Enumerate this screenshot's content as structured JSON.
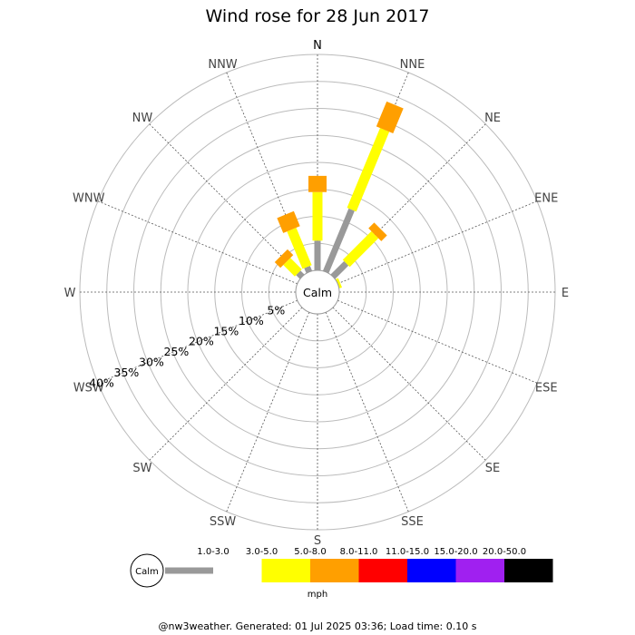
{
  "chart_data": {
    "type": "wind-rose",
    "title": "Wind rose for 28 Jun 2017",
    "directions": [
      "N",
      "NNE",
      "NE",
      "ENE",
      "E",
      "ESE",
      "SE",
      "SSE",
      "S",
      "SSW",
      "SW",
      "WSW",
      "W",
      "WNW",
      "NW",
      "NNW"
    ],
    "rings_percent": [
      5,
      10,
      15,
      20,
      25,
      30,
      35,
      40
    ],
    "ring_labels": [
      "5%",
      "10%",
      "15%",
      "20%",
      "25%",
      "30%",
      "35%",
      "40%"
    ],
    "calm_label": "Calm",
    "speed_bins": [
      {
        "label": "1.0-3.0",
        "color": "#999999"
      },
      {
        "label": "3.0-5.0",
        "color": "#ffff00"
      },
      {
        "label": "5.0-8.0",
        "color": "#ff9f00"
      },
      {
        "label": "8.0-11.0",
        "color": "#ff0000"
      },
      {
        "label": "11.0-15.0",
        "color": "#0000ff"
      },
      {
        "label": "15.0-20.0",
        "color": "#a020f0"
      },
      {
        "label": "20.0-50.0",
        "color": "#000000"
      }
    ],
    "unit": "mph",
    "series": [
      {
        "name": "1.0-3.0",
        "values": [
          5.5,
          12.5,
          3.5,
          0,
          0,
          0,
          0,
          0,
          0,
          0,
          0,
          0,
          0,
          0,
          1.0,
          1.0
        ]
      },
      {
        "name": "3.0-5.0",
        "values": [
          9.0,
          16.0,
          7.5,
          0.5,
          0,
          0,
          0,
          0,
          0,
          0,
          0,
          0,
          0,
          0,
          3.0,
          7.5
        ]
      },
      {
        "name": "5.0-8.0",
        "values": [
          3.0,
          5.0,
          1.5,
          0,
          0,
          0,
          0,
          0,
          0,
          0,
          0,
          0,
          0,
          0,
          1.5,
          3.0
        ]
      },
      {
        "name": "8.0-11.0",
        "values": [
          0,
          0,
          0,
          0,
          0,
          0,
          0,
          0,
          0,
          0,
          0,
          0,
          0,
          0,
          0,
          0
        ]
      },
      {
        "name": "11.0-15.0",
        "values": [
          0,
          0,
          0,
          0,
          0,
          0,
          0,
          0,
          0,
          0,
          0,
          0,
          0,
          0,
          0,
          0
        ]
      },
      {
        "name": "15.0-20.0",
        "values": [
          0,
          0,
          0,
          0,
          0,
          0,
          0,
          0,
          0,
          0,
          0,
          0,
          0,
          0,
          0,
          0
        ]
      },
      {
        "name": "20.0-50.0",
        "values": [
          0,
          0,
          0,
          0,
          0,
          0,
          0,
          0,
          0,
          0,
          0,
          0,
          0,
          0,
          0,
          0
        ]
      }
    ]
  },
  "footer": "@nw3weather. Generated: 01 Jul 2025 03:36; Load time: 0.10 s"
}
